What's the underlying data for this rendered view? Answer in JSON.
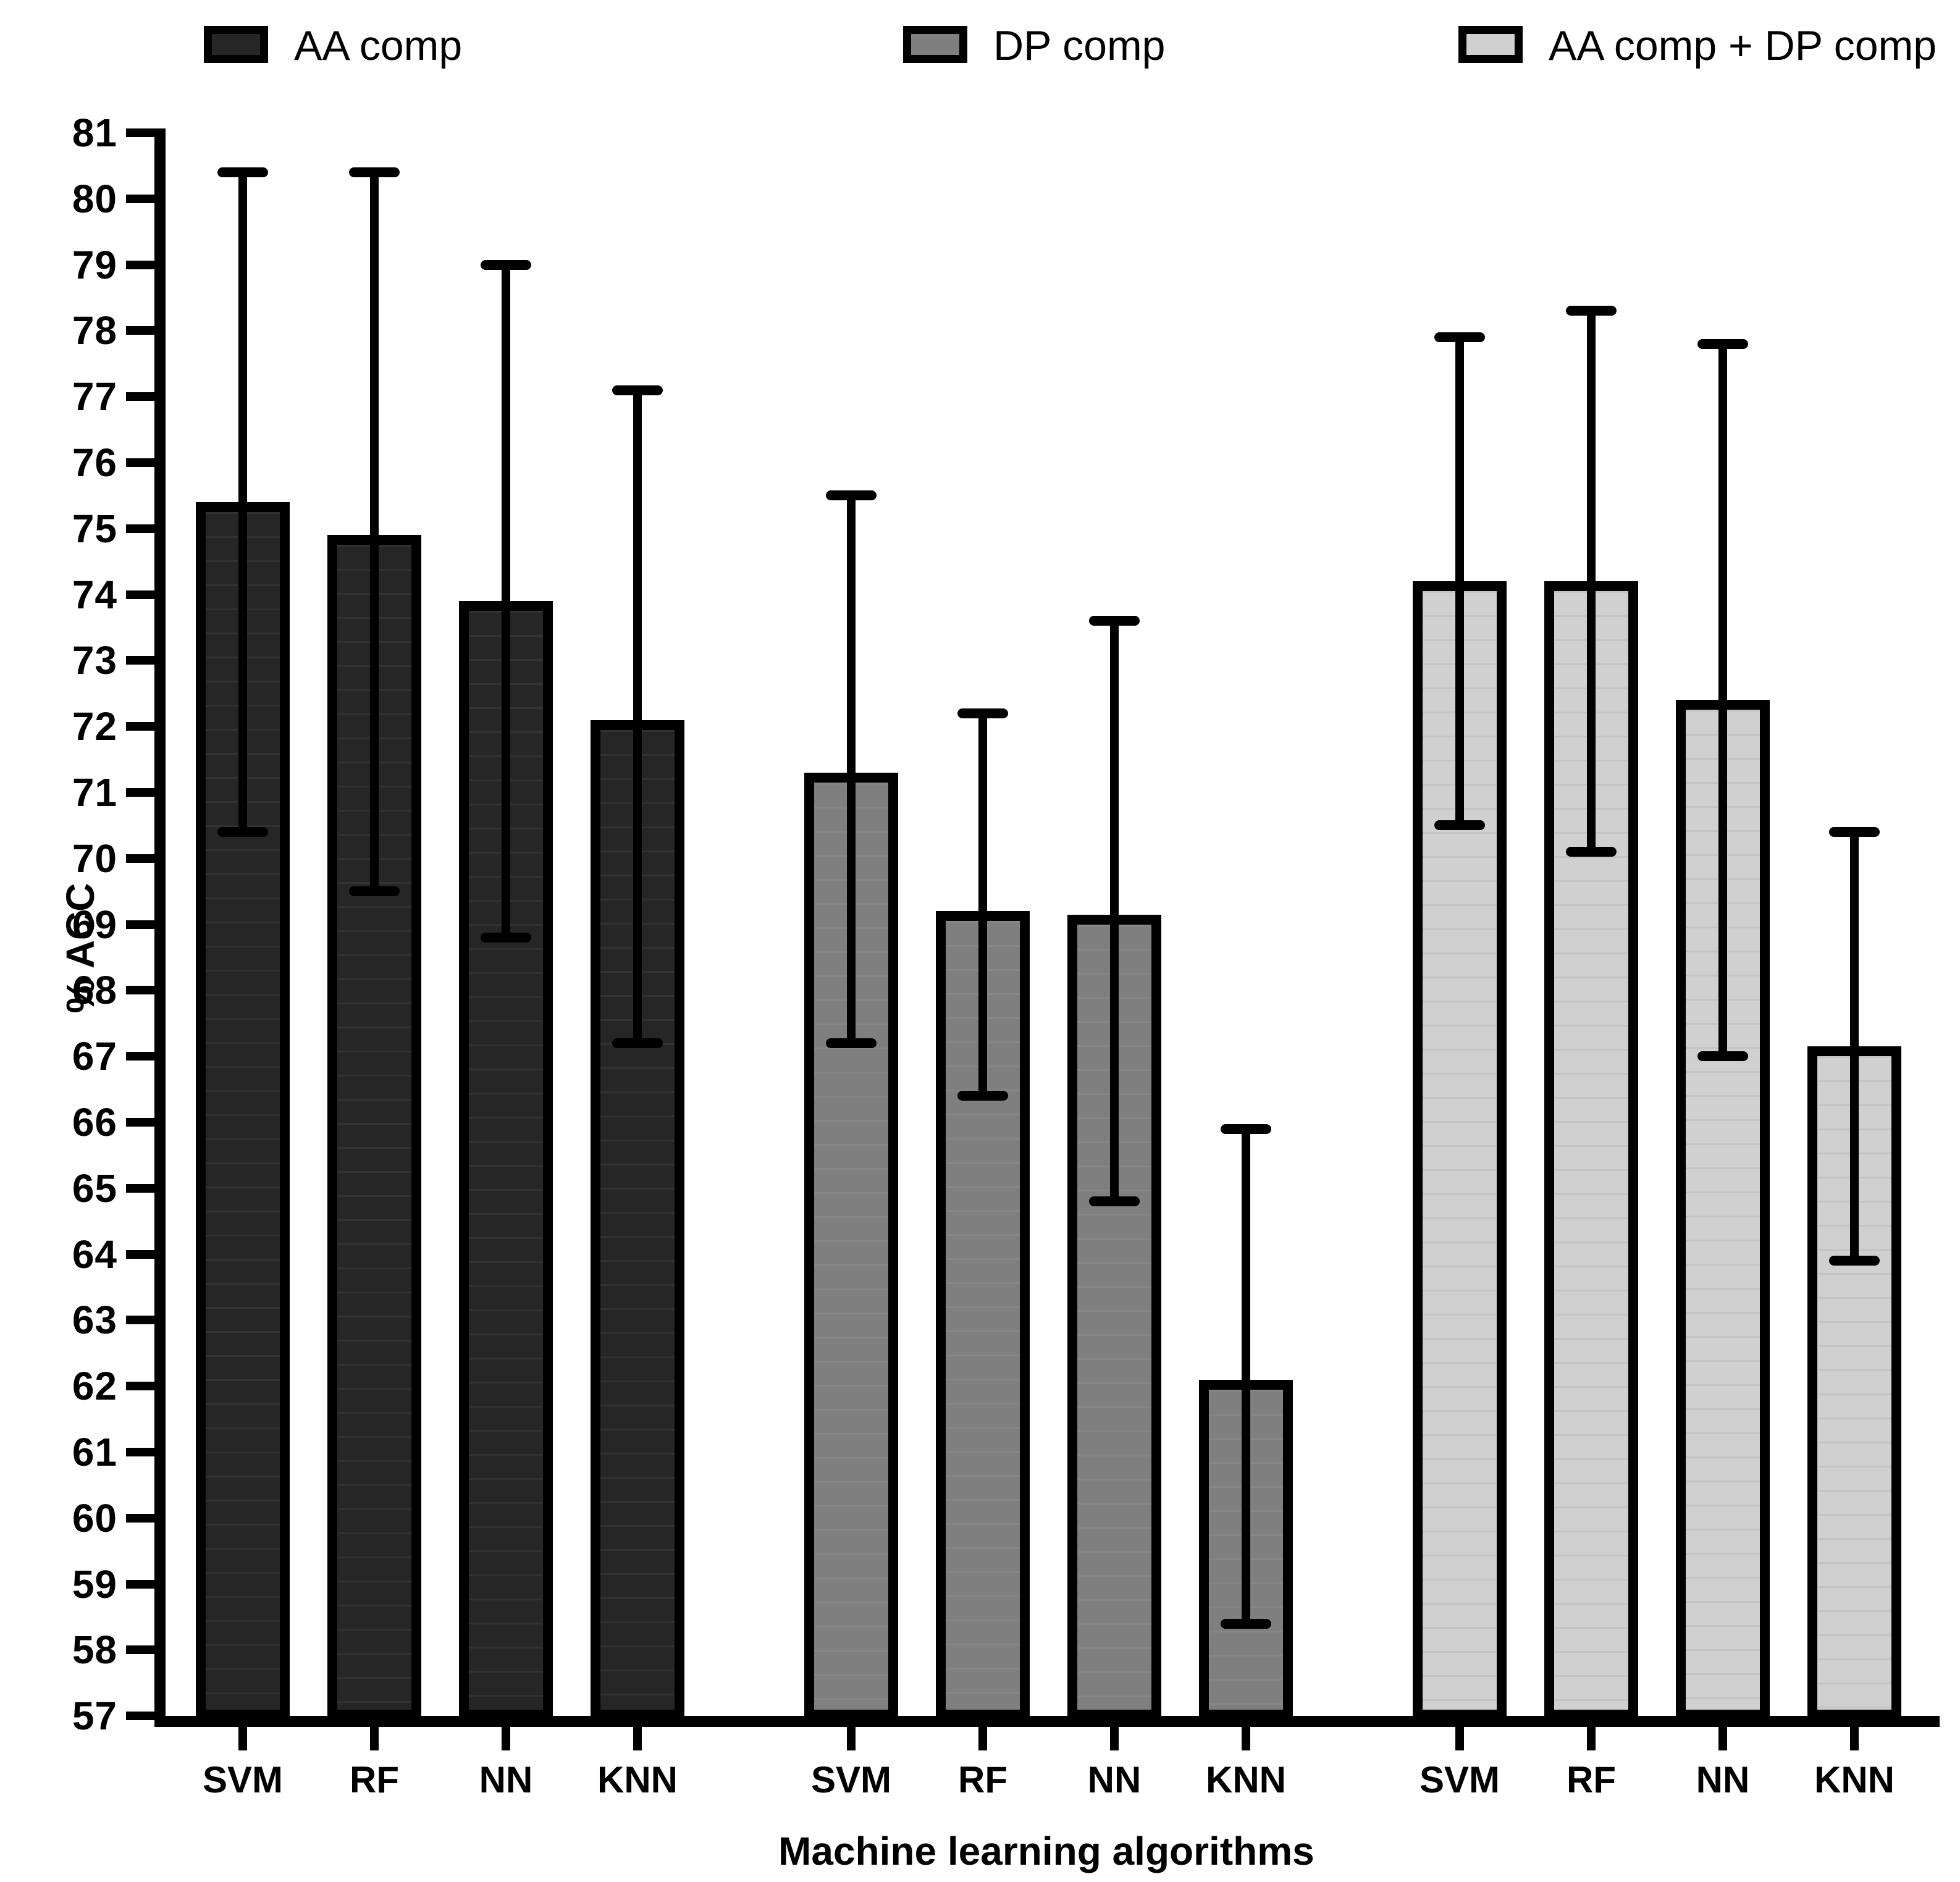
{
  "chart_data": {
    "type": "bar",
    "title": "",
    "xlabel": "Machine learning algorithms",
    "ylabel": "% ACC",
    "ylim": [
      57,
      81
    ],
    "ytick_step": 1,
    "grid": false,
    "legend_position": "top",
    "categories": [
      "SVM",
      "RF",
      "NN",
      "KNN"
    ],
    "series": [
      {
        "name": "AA comp",
        "color": "#262626",
        "values": [
          75.4,
          74.9,
          73.9,
          72.1
        ],
        "err_high": [
          80.4,
          80.4,
          79.0,
          77.1
        ],
        "err_low": [
          70.4,
          69.5,
          68.8,
          67.2
        ]
      },
      {
        "name": "DP comp",
        "color": "#7f7f7f",
        "values": [
          71.3,
          69.2,
          69.15,
          62.1
        ],
        "err_high": [
          75.5,
          72.2,
          73.6,
          65.9
        ],
        "err_low": [
          67.2,
          66.4,
          64.8,
          58.4
        ]
      },
      {
        "name": "AA comp + DP comp",
        "color": "#d0d0d0",
        "values": [
          74.2,
          74.2,
          72.4,
          67.15
        ],
        "err_high": [
          77.9,
          78.3,
          77.8,
          70.4
        ],
        "err_low": [
          70.5,
          70.1,
          67.0,
          63.9
        ]
      }
    ]
  }
}
